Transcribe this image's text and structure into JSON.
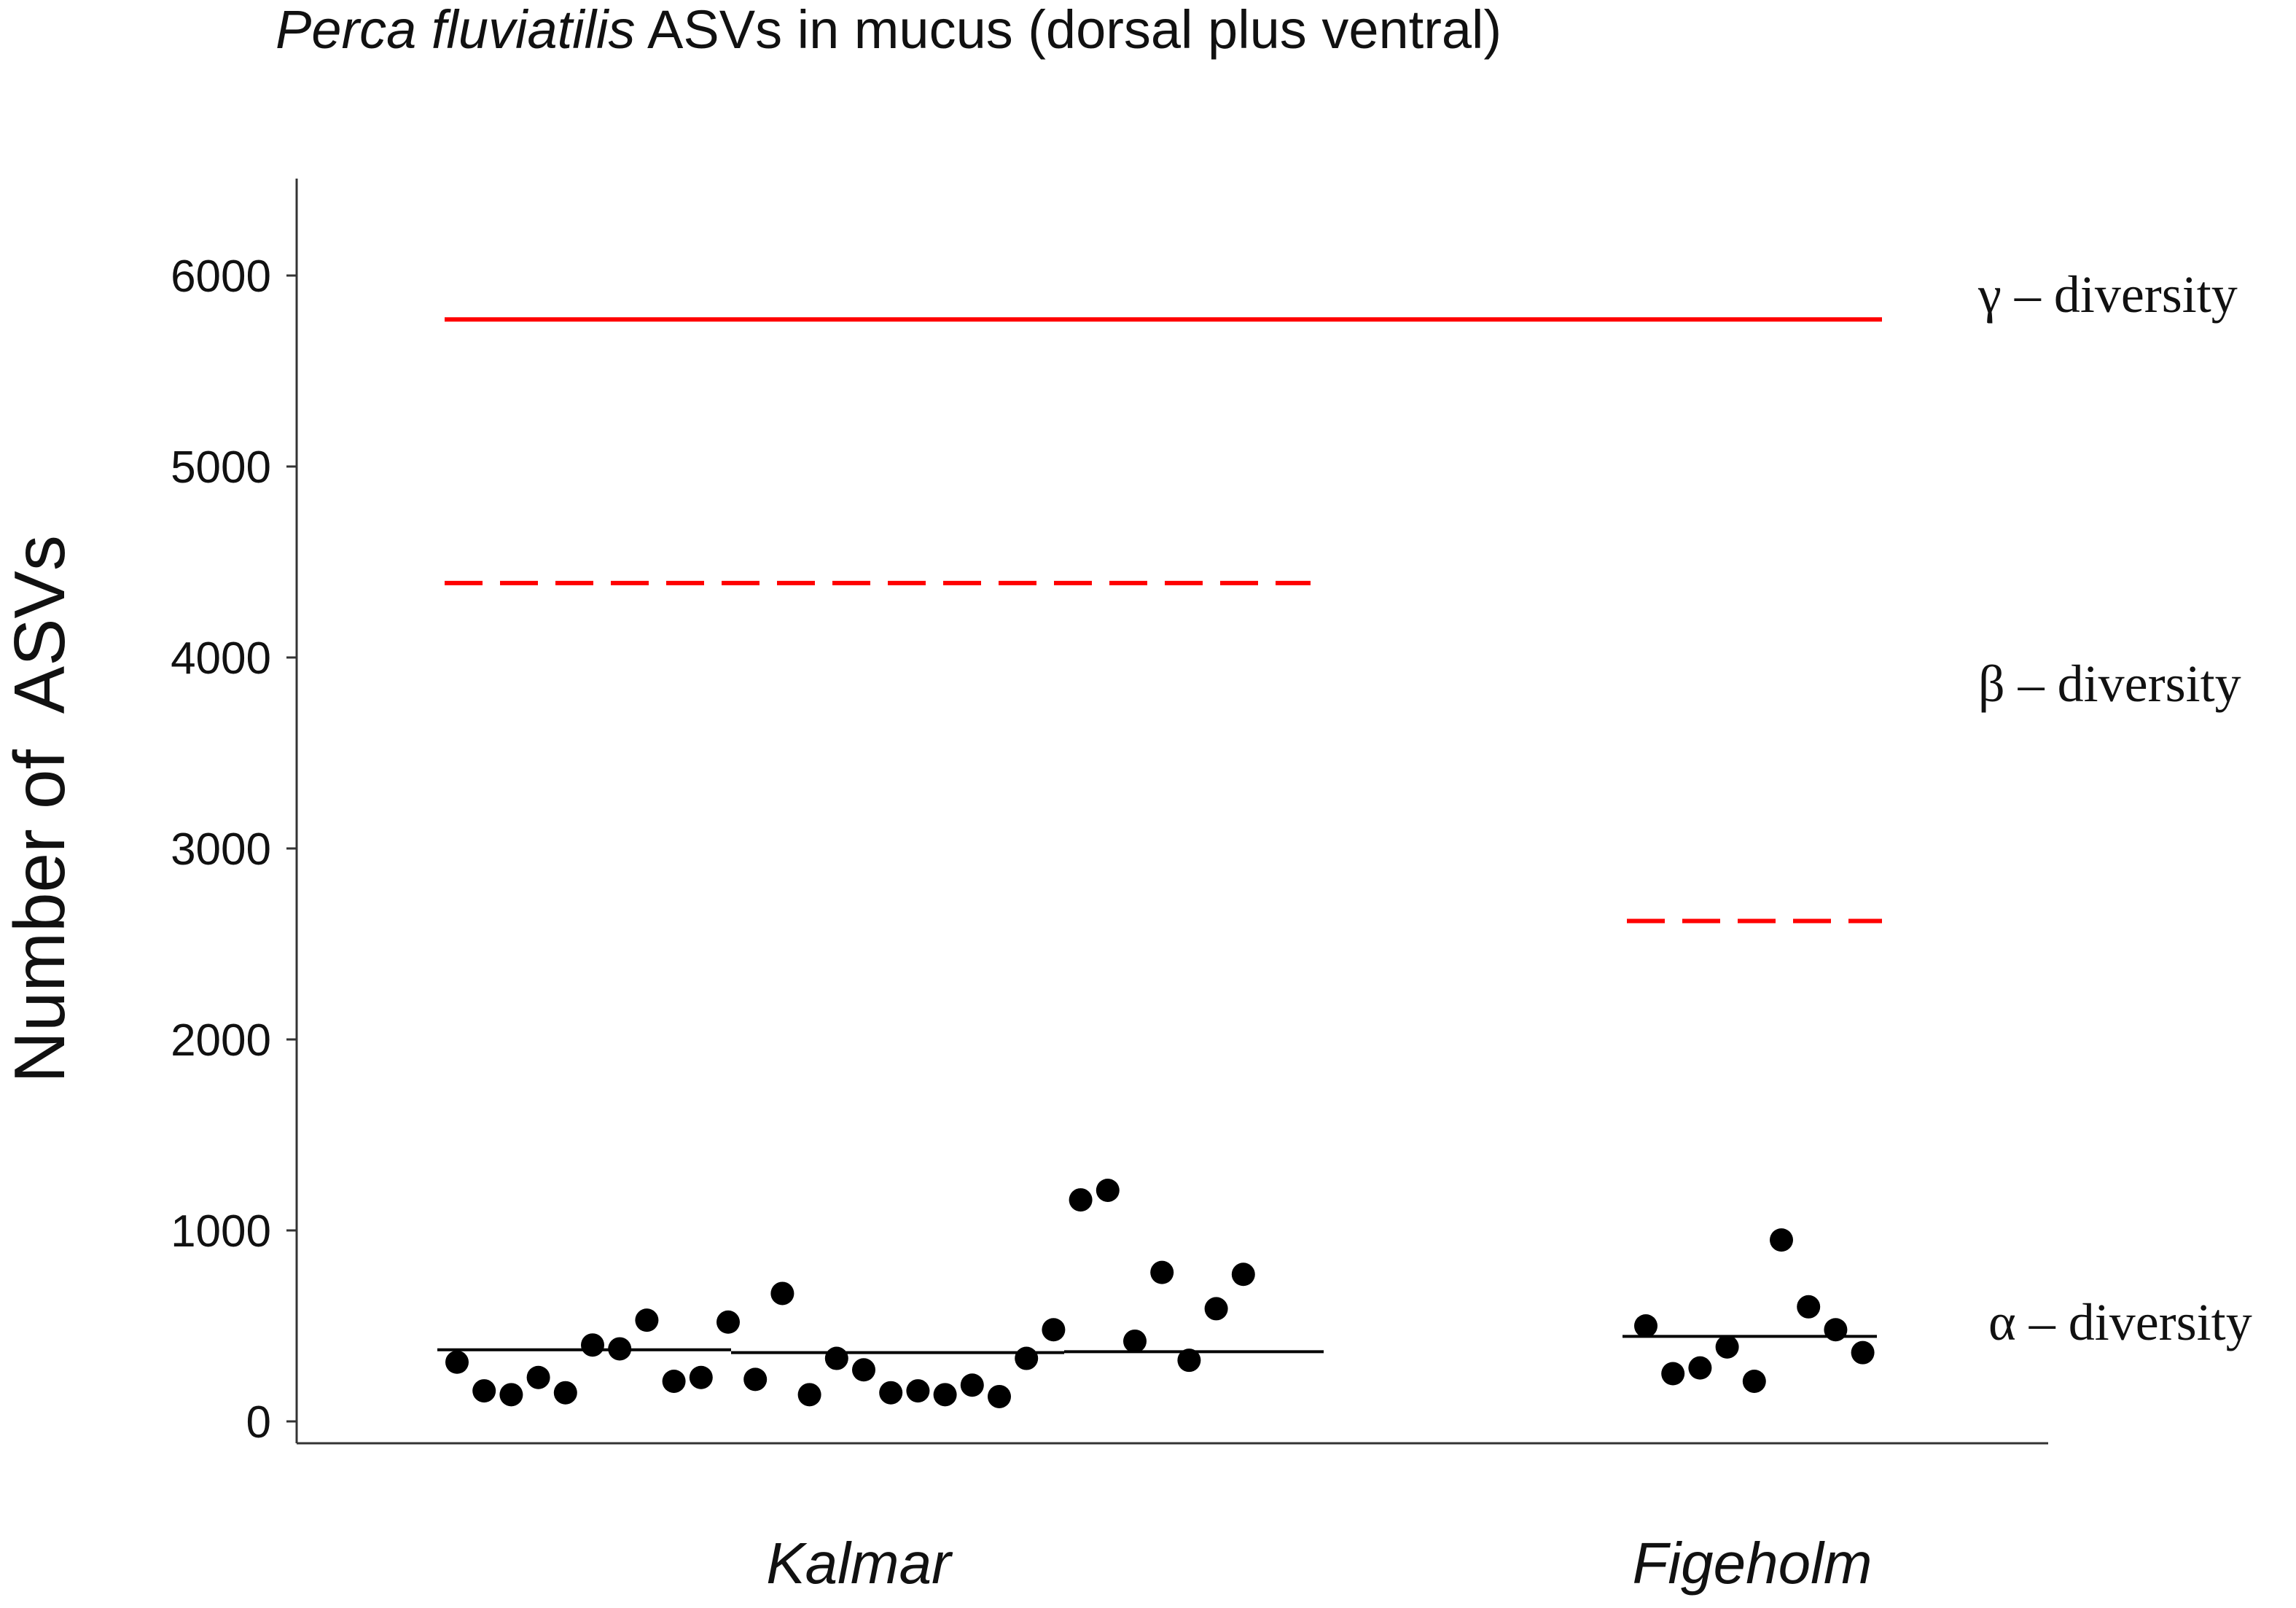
{
  "chart_data": {
    "type": "scatter",
    "title_species": "Perca fluviatilis",
    "title_rest": " ASVs in mucus (dorsal plus ventral)",
    "ylabel": "Number of  ASVs",
    "ylim": [
      0,
      6500
    ],
    "yticks": [
      0,
      1000,
      2000,
      3000,
      4000,
      5000,
      6000
    ],
    "grid": false,
    "categories": [
      "Kalmar",
      "Figeholm"
    ],
    "series": [
      {
        "category": "Kalmar",
        "values": [
          310,
          160,
          140,
          230,
          150,
          400,
          380,
          530,
          210,
          230,
          520,
          220,
          670,
          140,
          330,
          270,
          150,
          160,
          140,
          190,
          130,
          330,
          480,
          1160,
          1210,
          420,
          780,
          320,
          590,
          770
        ],
        "mean_lines": [
          {
            "y": 375,
            "segment": 1
          },
          {
            "y": 360,
            "segment": 2
          },
          {
            "y": 365,
            "segment": 3
          }
        ]
      },
      {
        "category": "Figeholm",
        "values": [
          500,
          250,
          280,
          390,
          210,
          950,
          600,
          480,
          360
        ],
        "mean_lines": [
          {
            "y": 445,
            "segment": 1
          }
        ]
      }
    ],
    "reference_lines": {
      "gamma": {
        "y": 5770,
        "color": "#ff0000",
        "style": "solid",
        "span": "both"
      },
      "beta_kalmar": {
        "y": 4390,
        "color": "#ff0000",
        "style": "dashed",
        "span": "Kalmar"
      },
      "beta_figeholm": {
        "y": 2620,
        "color": "#ff0000",
        "style": "dashed",
        "span": "Figeholm"
      }
    },
    "annotations": {
      "gamma_label": "γ – diversity",
      "beta_label": "β – diversity",
      "alpha_label": "α – diversity"
    },
    "point_color": "#000000"
  }
}
